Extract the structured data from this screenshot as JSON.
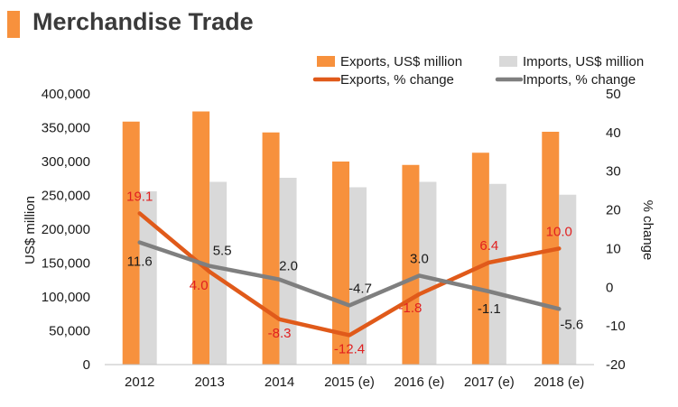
{
  "header": {
    "title": "Merchandise Trade"
  },
  "chart_data": {
    "type": "bar",
    "categories": [
      "2012",
      "2013",
      "2014",
      "2015 (e)",
      "2016 (e)",
      "2017 (e)",
      "2018 (e)"
    ],
    "series": [
      {
        "name": "Exports, US$ million",
        "kind": "bar",
        "axis": "left",
        "color": "#F7913D",
        "values": [
          359000,
          374000,
          343000,
          300000,
          295000,
          313000,
          344000
        ]
      },
      {
        "name": "Imports, US$ million",
        "kind": "bar",
        "axis": "left",
        "color": "#D9D9D9",
        "values": [
          256000,
          270000,
          276000,
          262000,
          270000,
          267000,
          251000
        ]
      },
      {
        "name": "Exports, % change",
        "kind": "line",
        "axis": "right",
        "color": "#E05A1A",
        "label_color": "#E02020",
        "values": [
          19.1,
          4.0,
          -8.3,
          -12.4,
          -1.8,
          6.4,
          10.0
        ],
        "labels": [
          "19.1",
          "4.0",
          "-8.3",
          "-12.4",
          "-1.8",
          "6.4",
          "10.0"
        ]
      },
      {
        "name": "Imports, % change",
        "kind": "line",
        "axis": "right",
        "color": "#7F7F7F",
        "label_color": "#1a1a1a",
        "values": [
          11.6,
          5.5,
          2.0,
          -4.7,
          3.0,
          -1.1,
          -5.6
        ],
        "labels": [
          "11.6",
          "5.5",
          "2.0",
          "-4.7",
          "3.0",
          "-1.1",
          "-5.6"
        ]
      }
    ],
    "y_left": {
      "label": "US$ million",
      "min": 0,
      "max": 400000,
      "ticks": [
        "0",
        "50,000",
        "100,000",
        "150,000",
        "200,000",
        "250,000",
        "300,000",
        "350,000",
        "400,000"
      ]
    },
    "y_right": {
      "label": "% change",
      "min": -20,
      "max": 50,
      "ticks": [
        "-20",
        "-10",
        "0",
        "10",
        "20",
        "30",
        "40",
        "50"
      ]
    },
    "legend_position": "top-right",
    "grid": false
  }
}
